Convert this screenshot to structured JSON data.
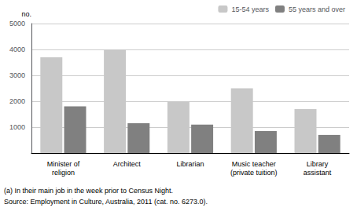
{
  "chart_data": {
    "type": "bar",
    "categories": [
      "Minister of\nreligion",
      "Architect",
      "Librarian",
      "Music teacher\n(private tuition)",
      "Library\nassistant"
    ],
    "series": [
      {
        "name": "15-54 years",
        "color": "#c8c8c8",
        "values": [
          3700,
          4000,
          2000,
          2500,
          1700
        ]
      },
      {
        "name": "55 years and over",
        "color": "#808080",
        "values": [
          1800,
          1150,
          1100,
          850,
          700
        ]
      }
    ],
    "ylabel": "no.",
    "ylim": [
      0,
      5000
    ],
    "yticks": [
      1000,
      2000,
      3000,
      4000,
      5000
    ],
    "grid": true,
    "legend": "upper right",
    "annotations": [
      "(a) In their main job in the week prior to Census Night.",
      "Source: Employment in Culture, Australia, 2011 (cat. no. 6273.0)."
    ]
  }
}
